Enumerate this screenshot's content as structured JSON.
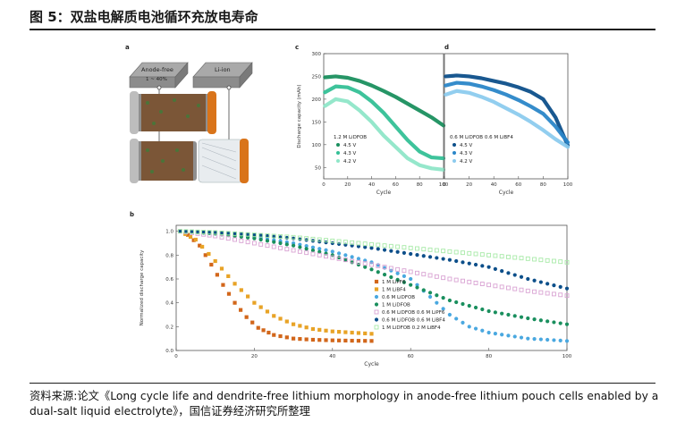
{
  "header": {
    "title": "图 5：双盐电解质电池循环充放电寿命"
  },
  "source_text": "资料来源:论文《Long cycle life and dendrite-free lithium morphology in anode-free lithium pouch cells enabled by a dual-salt liquid electrolyte》，国信证券经济研究所整理",
  "panel_a": {
    "panel_label": "a",
    "label_left": "Anode-free",
    "label_left_sub": "1 ~ 40%",
    "label_right": "Li-ion"
  },
  "chart_data": [
    {
      "panel": "c",
      "type": "line",
      "xlabel": "Cycle",
      "ylabel": "Discharge capacity (mAh)",
      "xlim": [
        0,
        100
      ],
      "ylim": [
        25,
        300
      ],
      "xticks": [
        0,
        20,
        40,
        60,
        80,
        100
      ],
      "yticks": [
        50,
        100,
        150,
        200,
        250,
        300
      ],
      "legend_title": "1.2 M LiDFOB",
      "series": [
        {
          "name": "4.5 V",
          "color": "#1a8f5e",
          "x": [
            1,
            10,
            20,
            30,
            40,
            50,
            60,
            70,
            80,
            90,
            100
          ],
          "y": [
            248,
            250,
            247,
            240,
            230,
            218,
            205,
            190,
            175,
            160,
            142
          ]
        },
        {
          "name": "4.3 V",
          "color": "#34c096",
          "x": [
            1,
            10,
            20,
            30,
            40,
            50,
            60,
            70,
            80,
            90,
            100
          ],
          "y": [
            215,
            228,
            226,
            215,
            195,
            170,
            140,
            110,
            85,
            72,
            70
          ]
        },
        {
          "name": "4.2 V",
          "color": "#8fe6c8",
          "x": [
            1,
            10,
            20,
            30,
            40,
            50,
            60,
            70,
            80,
            90,
            100
          ],
          "y": [
            185,
            200,
            195,
            175,
            150,
            120,
            95,
            70,
            55,
            48,
            45
          ]
        }
      ]
    },
    {
      "panel": "d",
      "type": "line",
      "xlabel": "Cycle",
      "ylabel": "",
      "xlim": [
        0,
        100
      ],
      "ylim": [
        25,
        300
      ],
      "xticks": [
        0,
        20,
        40,
        60,
        80,
        100
      ],
      "legend_title": "0.6 M LiDFOB 0.6 M LiBF4",
      "series": [
        {
          "name": "4.5 V",
          "color": "#0d4f8a",
          "x": [
            1,
            10,
            20,
            30,
            40,
            50,
            60,
            70,
            80,
            90,
            100
          ],
          "y": [
            250,
            252,
            250,
            246,
            240,
            234,
            226,
            216,
            200,
            160,
            98
          ]
        },
        {
          "name": "4.3 V",
          "color": "#2a86c8",
          "x": [
            1,
            10,
            20,
            30,
            40,
            50,
            60,
            70,
            80,
            90,
            100
          ],
          "y": [
            230,
            236,
            234,
            228,
            220,
            210,
            198,
            184,
            168,
            140,
            105
          ]
        },
        {
          "name": "4.2 V",
          "color": "#8ccbee",
          "x": [
            1,
            10,
            20,
            30,
            40,
            50,
            60,
            70,
            80,
            90,
            100
          ],
          "y": [
            210,
            218,
            214,
            205,
            194,
            180,
            166,
            150,
            132,
            112,
            95
          ]
        }
      ]
    },
    {
      "panel": "b",
      "type": "scatter",
      "xlabel": "Cycle",
      "ylabel": "Normalized discharge capacity",
      "xlim": [
        0,
        100
      ],
      "ylim": [
        0,
        1.05
      ],
      "xticks": [
        0,
        20,
        40,
        60,
        80,
        100
      ],
      "yticks": [
        0.0,
        0.2,
        0.4,
        0.6,
        0.8,
        1.0
      ],
      "series": [
        {
          "name": "1 M LiPF6",
          "color": "#d2661a",
          "marker": "square",
          "x": [
            1,
            3,
            6,
            9,
            12,
            15,
            18,
            21,
            25,
            30,
            35,
            40,
            45,
            50
          ],
          "y": [
            1.0,
            0.97,
            0.88,
            0.72,
            0.55,
            0.4,
            0.28,
            0.19,
            0.13,
            0.1,
            0.09,
            0.085,
            0.082,
            0.08
          ]
        },
        {
          "name": "1 M LiBF4",
          "color": "#e8a326",
          "marker": "square",
          "x": [
            1,
            5,
            10,
            15,
            20,
            25,
            30,
            35,
            40,
            45,
            50
          ],
          "y": [
            1.0,
            0.93,
            0.75,
            0.56,
            0.4,
            0.29,
            0.22,
            0.18,
            0.16,
            0.15,
            0.14
          ]
        },
        {
          "name": "0.6 M LiDFOB",
          "color": "#4aa8e0",
          "marker": "circle",
          "x": [
            1,
            10,
            20,
            30,
            40,
            50,
            60,
            65,
            70,
            75,
            80,
            90,
            100
          ],
          "y": [
            1.0,
            0.98,
            0.95,
            0.9,
            0.83,
            0.74,
            0.6,
            0.45,
            0.3,
            0.2,
            0.15,
            0.1,
            0.08
          ]
        },
        {
          "name": "1 M LiDFOB",
          "color": "#1a8f5e",
          "marker": "circle",
          "x": [
            1,
            10,
            20,
            30,
            40,
            50,
            60,
            70,
            80,
            90,
            100
          ],
          "y": [
            1.0,
            0.98,
            0.94,
            0.88,
            0.8,
            0.68,
            0.55,
            0.42,
            0.33,
            0.27,
            0.22
          ]
        },
        {
          "name": "0.6 M LiDFOB 0.6 M LiPF6",
          "color": "#d9a3d3",
          "marker": "square-open",
          "x": [
            1,
            10,
            20,
            30,
            40,
            50,
            60,
            70,
            80,
            90,
            100
          ],
          "y": [
            1.0,
            0.96,
            0.9,
            0.84,
            0.78,
            0.72,
            0.66,
            0.6,
            0.55,
            0.5,
            0.46
          ]
        },
        {
          "name": "0.6 M LiDFOB 0.6 M LiBF4",
          "color": "#0d4f8a",
          "marker": "circle",
          "x": [
            1,
            10,
            20,
            30,
            40,
            50,
            60,
            70,
            80,
            90,
            100
          ],
          "y": [
            1.0,
            0.99,
            0.97,
            0.94,
            0.9,
            0.86,
            0.81,
            0.76,
            0.7,
            0.6,
            0.52
          ]
        },
        {
          "name": "1 M LiDFOB 0.2 M LiBF4",
          "color": "#a8eaa8",
          "marker": "square-open",
          "x": [
            1,
            10,
            20,
            30,
            40,
            50,
            60,
            70,
            80,
            90,
            100
          ],
          "y": [
            1.0,
            0.99,
            0.97,
            0.95,
            0.92,
            0.89,
            0.86,
            0.83,
            0.8,
            0.77,
            0.74
          ]
        }
      ]
    }
  ]
}
